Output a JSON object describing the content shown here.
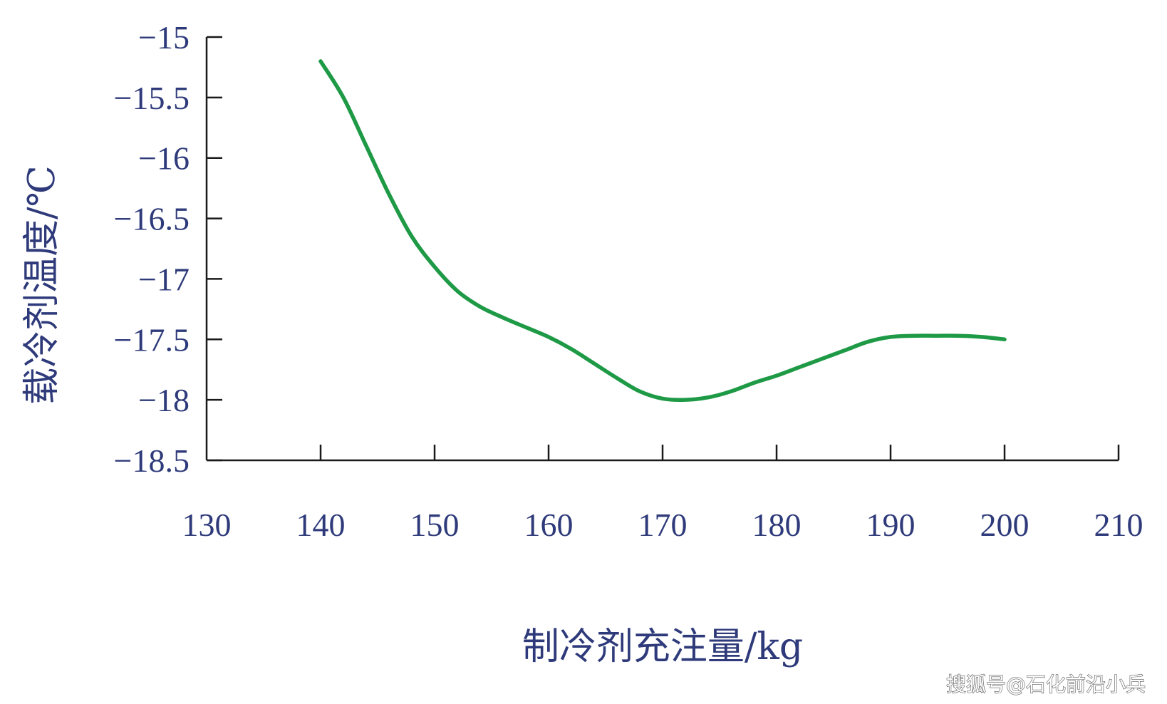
{
  "chart_data": {
    "type": "line",
    "title": "",
    "xlabel": "制冷剂充注量/kg",
    "ylabel": "载冷剂温度/℃",
    "xlim": [
      130,
      210
    ],
    "ylim": [
      -18.5,
      -15
    ],
    "x_ticks": [
      "130",
      "140",
      "150",
      "160",
      "170",
      "180",
      "190",
      "200",
      "210"
    ],
    "y_ticks": [
      "−15",
      "−15.5",
      "−16",
      "−16.5",
      "−17",
      "−17.5",
      "−18",
      "−18.5"
    ],
    "grid": false,
    "legend": "none",
    "series": [
      {
        "color": "#1e9a46",
        "x": [
          140,
          142,
          144,
          146,
          148,
          150,
          152,
          154,
          156,
          158,
          160,
          162,
          164,
          166,
          168,
          170,
          172,
          174,
          176,
          178,
          180,
          182,
          184,
          186,
          188,
          190,
          192,
          194,
          196,
          198,
          200
        ],
        "y": [
          -15.2,
          -15.5,
          -15.9,
          -16.3,
          -16.65,
          -16.9,
          -17.1,
          -17.23,
          -17.32,
          -17.4,
          -17.48,
          -17.58,
          -17.7,
          -17.82,
          -17.93,
          -17.99,
          -18.0,
          -17.98,
          -17.93,
          -17.86,
          -17.8,
          -17.73,
          -17.66,
          -17.59,
          -17.52,
          -17.48,
          -17.47,
          -17.47,
          -17.47,
          -17.48,
          -17.5
        ]
      }
    ]
  },
  "watermark": "搜狐号@石化前沿小兵"
}
